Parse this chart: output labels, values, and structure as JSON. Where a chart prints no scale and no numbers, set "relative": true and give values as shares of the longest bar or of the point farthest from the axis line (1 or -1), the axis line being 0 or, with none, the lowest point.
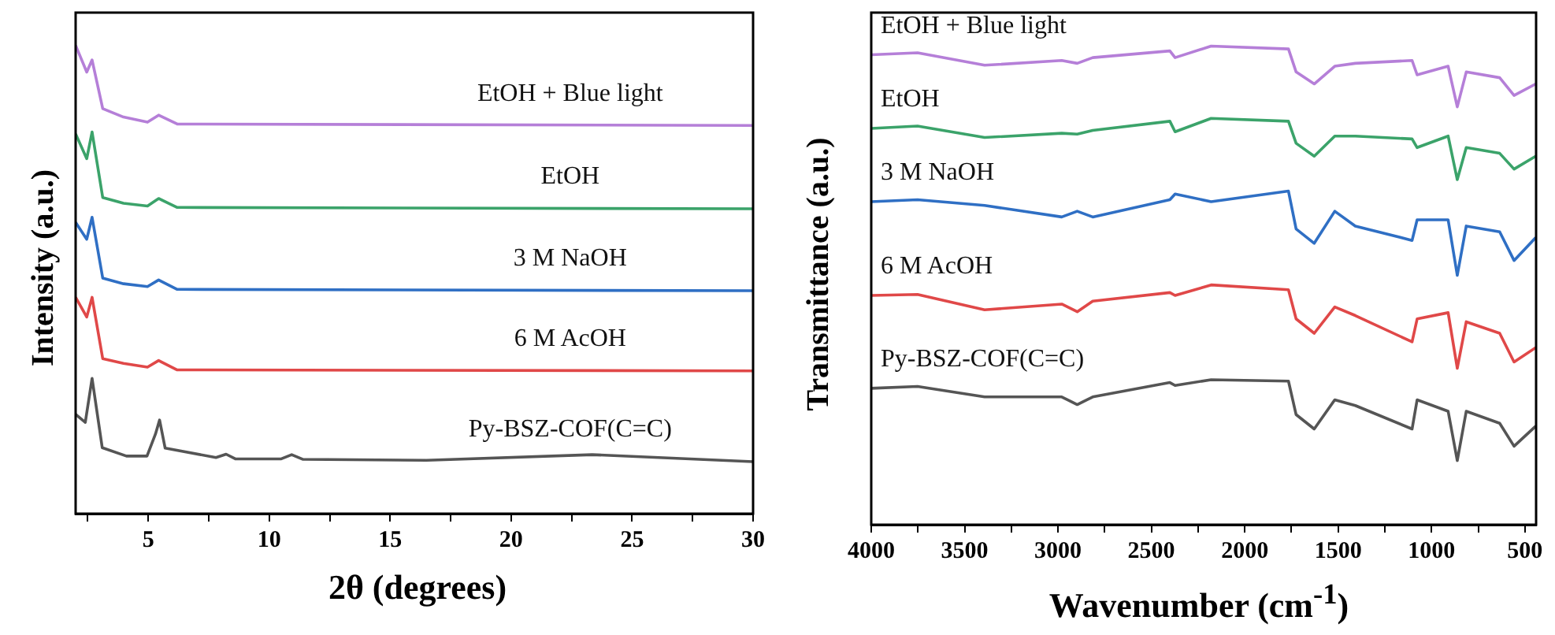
{
  "chart_data": [
    {
      "type": "line",
      "relative": true,
      "marker": "none",
      "xlabel": "2θ (degrees)",
      "ylabel": "Intensity (a.u.)",
      "xlim": [
        2,
        30
      ],
      "xticks": [
        {
          "value": 2.5,
          "label": null
        },
        5,
        {
          "value": 7.5,
          "label": null
        },
        10,
        {
          "value": 12.5,
          "label": null
        },
        15,
        {
          "value": 17.5,
          "label": null
        },
        20,
        {
          "value": 22.5,
          "label": null
        },
        25,
        {
          "value": 27.5,
          "label": null
        },
        30
      ],
      "tick_labels": "x",
      "series": [
        {
          "name": "EtOH + Blue light",
          "color": "#b57fd8",
          "x": [
            2,
            2.46,
            2.68,
            3.12,
            3.98,
            4.97,
            5.43,
            6.2,
            30
          ],
          "values": [
            1.0,
            0.943,
            0.969,
            0.865,
            0.847,
            0.836,
            0.851,
            0.832,
            0.829
          ]
        },
        {
          "name": "EtOH",
          "color": "#3ba36a",
          "x": [
            2,
            2.46,
            2.68,
            3.12,
            3.98,
            4.97,
            5.43,
            6.2,
            30
          ],
          "values": [
            0.811,
            0.758,
            0.815,
            0.675,
            0.663,
            0.657,
            0.673,
            0.654,
            0.651
          ]
        },
        {
          "name": "3 M NaOH",
          "color": "#2f6fc4",
          "x": [
            2,
            2.46,
            2.68,
            3.12,
            3.98,
            4.97,
            5.43,
            6.2,
            30
          ],
          "values": [
            0.622,
            0.586,
            0.633,
            0.503,
            0.491,
            0.485,
            0.499,
            0.479,
            0.476
          ]
        },
        {
          "name": "6 M AcOH",
          "color": "#e04848",
          "x": [
            2,
            2.46,
            2.68,
            3.12,
            3.98,
            4.97,
            5.43,
            6.2,
            30
          ],
          "values": [
            0.462,
            0.42,
            0.462,
            0.331,
            0.321,
            0.313,
            0.327,
            0.307,
            0.305
          ]
        },
        {
          "name": "Py-BSZ-COF(C=C)",
          "color": "#555555",
          "x": [
            2,
            2.4,
            2.68,
            3.1,
            4.1,
            4.95,
            5.3,
            5.47,
            5.7,
            7.8,
            8.22,
            8.6,
            10.5,
            10.93,
            11.4,
            16.5,
            23.35,
            30
          ],
          "values": [
            0.212,
            0.195,
            0.289,
            0.141,
            0.123,
            0.123,
            0.17,
            0.2,
            0.14,
            0.12,
            0.127,
            0.117,
            0.117,
            0.126,
            0.116,
            0.114,
            0.126,
            0.111
          ]
        }
      ]
    },
    {
      "type": "line",
      "relative": true,
      "marker": "none",
      "xlabel": "Wavenumber (cm$^{-1}$)",
      "ylabel": "Transmittance (a.u.)",
      "xlim": [
        4000,
        440
      ],
      "xticks": [
        4000,
        {
          "value": 3750,
          "label": null
        },
        3500,
        {
          "value": 3250,
          "label": null
        },
        3000,
        {
          "value": 2750,
          "label": null
        },
        2500,
        {
          "value": 2250,
          "label": null
        },
        2000,
        {
          "value": 1750,
          "label": null
        },
        1500,
        {
          "value": 1250,
          "label": null
        },
        1000,
        {
          "value": 750,
          "label": null
        },
        500
      ],
      "tick_labels": "x",
      "series": [
        {
          "name": "EtOH + Blue light",
          "color": "#b57fd8",
          "x": [
            4000,
            3752,
            3393,
            2980,
            2897,
            2814,
            2401,
            2373,
            2180,
            1766,
            1725,
            1628,
            1518,
            1408,
            1104,
            1077,
            911,
            862,
            814,
            635,
            558,
            442
          ],
          "values": [
            0.982,
            0.986,
            0.96,
            0.97,
            0.964,
            0.976,
            0.99,
            0.976,
            1.0,
            0.994,
            0.946,
            0.921,
            0.958,
            0.964,
            0.97,
            0.94,
            0.958,
            0.873,
            0.946,
            0.934,
            0.897,
            0.921
          ]
        },
        {
          "name": "EtOH",
          "color": "#3ba36a",
          "x": [
            4000,
            3752,
            3393,
            2980,
            2897,
            2814,
            2401,
            2373,
            2180,
            1766,
            1725,
            1628,
            1518,
            1408,
            1104,
            1077,
            911,
            862,
            814,
            635,
            558,
            442
          ],
          "values": [
            0.828,
            0.833,
            0.809,
            0.818,
            0.816,
            0.824,
            0.843,
            0.821,
            0.849,
            0.843,
            0.797,
            0.77,
            0.812,
            0.812,
            0.806,
            0.788,
            0.812,
            0.721,
            0.788,
            0.776,
            0.743,
            0.77
          ]
        },
        {
          "name": "3 M NaOH",
          "color": "#2f6fc4",
          "x": [
            4000,
            3752,
            3393,
            2980,
            2897,
            2814,
            2401,
            2373,
            2180,
            1766,
            1725,
            1628,
            1518,
            1408,
            1104,
            1077,
            911,
            862,
            814,
            635,
            558,
            442
          ],
          "values": [
            0.675,
            0.679,
            0.667,
            0.643,
            0.655,
            0.643,
            0.679,
            0.691,
            0.675,
            0.697,
            0.618,
            0.588,
            0.655,
            0.624,
            0.594,
            0.637,
            0.637,
            0.521,
            0.624,
            0.612,
            0.552,
            0.6
          ]
        },
        {
          "name": "6 M AcOH",
          "color": "#e04848",
          "x": [
            4000,
            3752,
            3393,
            2980,
            2897,
            2814,
            2401,
            2373,
            2180,
            1766,
            1725,
            1628,
            1518,
            1408,
            1104,
            1077,
            911,
            862,
            814,
            635,
            558,
            442
          ],
          "values": [
            0.479,
            0.481,
            0.449,
            0.461,
            0.445,
            0.467,
            0.485,
            0.479,
            0.501,
            0.491,
            0.43,
            0.4,
            0.455,
            0.437,
            0.382,
            0.43,
            0.443,
            0.327,
            0.424,
            0.4,
            0.34,
            0.37
          ]
        },
        {
          "name": "Py-BSZ-COF(C=C)",
          "color": "#555555",
          "x": [
            4000,
            3752,
            3393,
            2980,
            2897,
            2814,
            2401,
            2373,
            2180,
            1766,
            1725,
            1628,
            1518,
            1408,
            1104,
            1077,
            911,
            862,
            814,
            635,
            558,
            442
          ],
          "values": [
            0.285,
            0.289,
            0.267,
            0.267,
            0.251,
            0.267,
            0.297,
            0.291,
            0.303,
            0.3,
            0.23,
            0.2,
            0.261,
            0.249,
            0.2,
            0.261,
            0.237,
            0.134,
            0.237,
            0.212,
            0.164,
            0.206
          ]
        }
      ]
    }
  ]
}
